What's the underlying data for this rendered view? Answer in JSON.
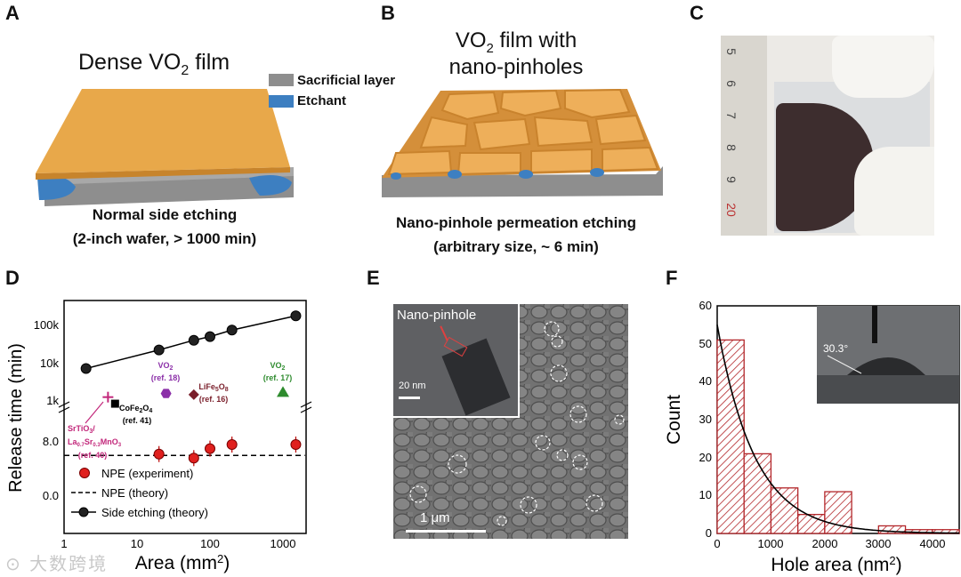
{
  "panels": {
    "A": {
      "letter": "A",
      "title": "Dense VO",
      "title_sub": "2",
      "title_tail": " film",
      "legend": [
        "Sacrificial layer",
        "Etchant"
      ],
      "caption_line1": "Normal side etching",
      "caption_line2": "(2-inch wafer, > 1000 min)"
    },
    "B": {
      "letter": "B",
      "title_line1_a": "VO",
      "title_line1_sub": "2",
      "title_line1_b": " film with",
      "title_line2": "nano-pinholes",
      "caption_line1": "Nano-pinhole permeation etching",
      "caption_line2": "(arbitrary size, ~ 6 min)"
    },
    "C": {
      "letter": "C",
      "ruler_labels": [
        "5",
        "6",
        "7",
        "8",
        "9",
        "20"
      ]
    },
    "D": {
      "letter": "D"
    },
    "E": {
      "letter": "E",
      "inset_label": "Nano-pinhole",
      "inset_scale": "20 nm",
      "scale_label": "1 μm"
    },
    "F": {
      "letter": "F",
      "inset_angle": "30.3°"
    }
  },
  "colors": {
    "film_orange": "#e8a84a",
    "sacrificial_gray": "#8e8e8e",
    "etchant_blue": "#3d7fc1",
    "npe_red": "#e0201e",
    "bar_red": "#b3262a",
    "green": "#2e8b2e",
    "purple": "#8b2fa8",
    "brown": "#7a1f2b",
    "magenta": "#c2277a"
  },
  "chart_data": [
    {
      "type": "scatter",
      "panel": "D",
      "xlabel": "Area (mm",
      "xlabel_sup": "2",
      "xlabel_tail": ")",
      "ylabel": "Release time (min)",
      "x_scale": "log",
      "xlim": [
        1,
        2000
      ],
      "x_ticks": [
        "1",
        "10",
        "100",
        "1000"
      ],
      "y_ticks_upper": [
        "1k",
        "10k",
        "100k"
      ],
      "y_ticks_lower": [
        "0.0",
        "8.0"
      ],
      "legend": [
        "NPE (experiment)",
        "NPE (theory)",
        "Side etching (theory)"
      ],
      "series": [
        {
          "name": "Side etching (theory)",
          "x": [
            2,
            20,
            60,
            100,
            200,
            1500
          ],
          "y": [
            7000,
            22000,
            40000,
            50000,
            75000,
            180000
          ]
        },
        {
          "name": "NPE (experiment)",
          "x": [
            20,
            60,
            100,
            200,
            1500
          ],
          "y": [
            6.2,
            5.6,
            7.0,
            7.6,
            7.6
          ]
        },
        {
          "name": "NPE (theory)",
          "x": [
            1,
            2000
          ],
          "y": [
            6.0,
            6.0
          ]
        }
      ],
      "annotations": [
        {
          "label": "VO2",
          "ref": "(ref. 18)",
          "x": 25,
          "y": 1500,
          "marker": "hexagon"
        },
        {
          "label": "LiFe5O8",
          "ref": "(ref. 16)",
          "x": 60,
          "y": 1400,
          "marker": "diamond"
        },
        {
          "label": "VO2",
          "ref": "(ref. 17)",
          "x": 1000,
          "y": 1600,
          "marker": "triangle"
        },
        {
          "label": "CoFe2O4",
          "ref": "(ref. 41)",
          "x": 5,
          "y": 800,
          "marker": "square"
        },
        {
          "label": "SrTiO3/La0.7Sr0.3MnO3",
          "ref": "(ref. 40)",
          "x": 4,
          "y": 1200,
          "marker": "plus"
        }
      ],
      "text": {
        "vo2_18": "VO",
        "vo2_18_sub": "2",
        "vo2_18_ref": "(ref. 18)",
        "life": "LiFe",
        "life_sub1": "5",
        "life_mid": "O",
        "life_sub2": "8",
        "life_ref": "(ref. 16)",
        "vo2_17": "VO",
        "vo2_17_sub": "2",
        "vo2_17_ref": "(ref. 17)",
        "cofe": "CoFe",
        "cofe_sub": "2",
        "cofe_mid": "O",
        "cofe_sub2": "4",
        "cofe_ref": "(ref. 41)",
        "sto_a": "SrTiO",
        "sto_sub": "3",
        "sto_b": "/",
        "lsmo_a": "La",
        "lsmo_s1": "0.7",
        "lsmo_b": "Sr",
        "lsmo_s2": "0.3",
        "lsmo_c": "MnO",
        "lsmo_s3": "3",
        "sto_ref": "(ref. 40)"
      }
    },
    {
      "type": "bar",
      "panel": "F",
      "xlabel": "Hole area (nm",
      "xlabel_sup": "2",
      "xlabel_tail": ")",
      "ylabel": "Count",
      "xlim": [
        0,
        4500
      ],
      "ylim": [
        0,
        60
      ],
      "x_ticks": [
        "0",
        "1000",
        "2000",
        "3000",
        "4000"
      ],
      "y_ticks": [
        "0",
        "10",
        "20",
        "30",
        "40",
        "50",
        "60"
      ],
      "bin_edges": [
        0,
        500,
        1000,
        1500,
        2000,
        2500,
        3000,
        3500,
        4000,
        4500
      ],
      "values": [
        51,
        21,
        12,
        5,
        11,
        0,
        2,
        1,
        1
      ]
    }
  ]
}
